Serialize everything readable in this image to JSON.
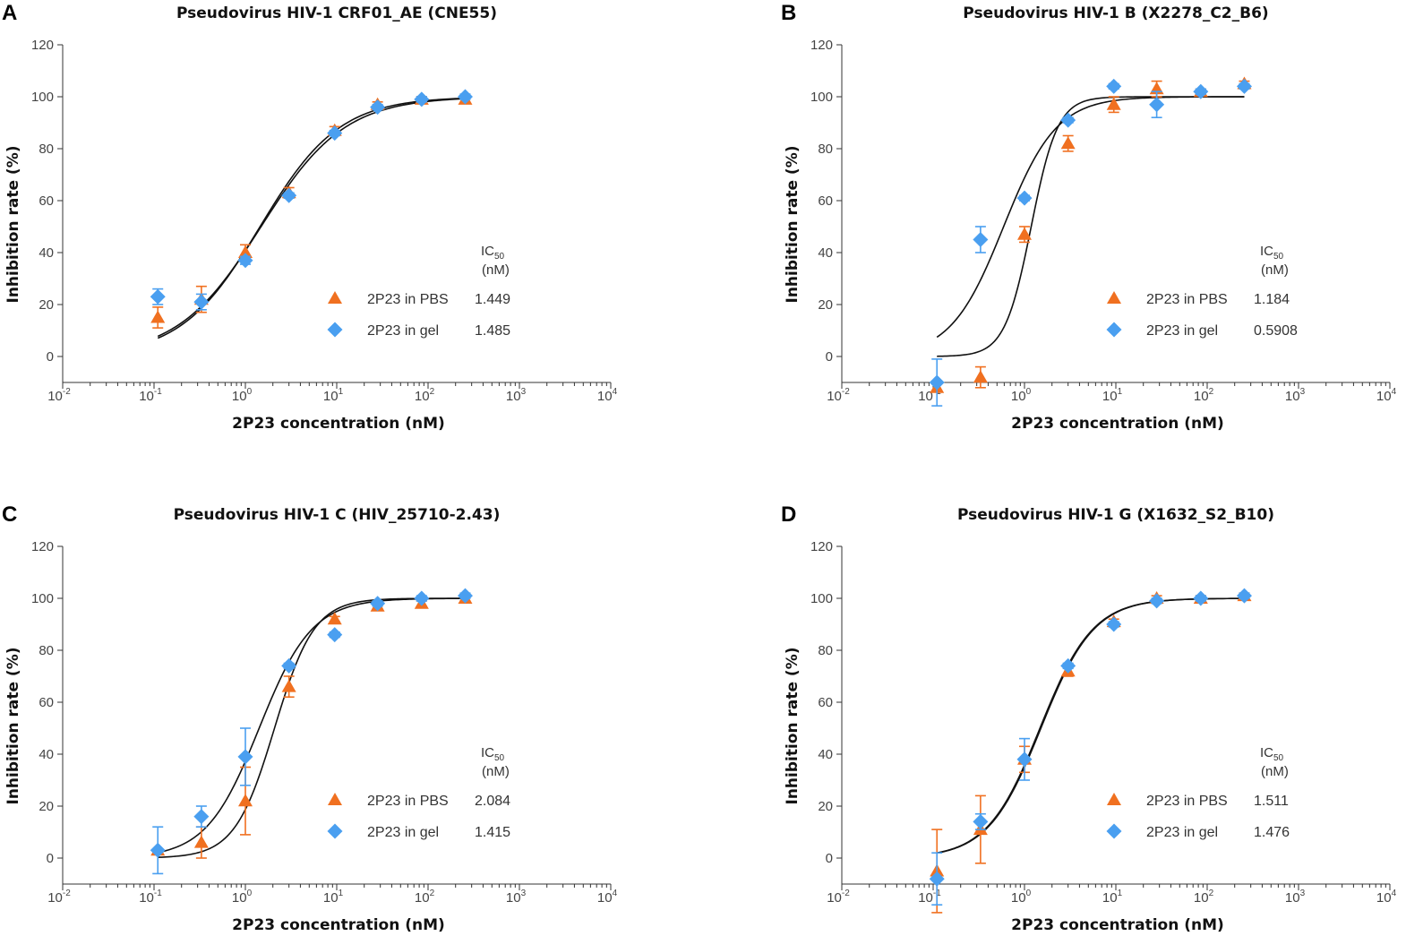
{
  "figure": {
    "xlabel": "2P23 concentration (nM)",
    "ylabel": "Inhibition rate (%)",
    "ic50_label": "IC",
    "ic50_sub": "50",
    "ic50_unit": "(nM)",
    "colors": {
      "pbs": "#f07020",
      "gel": "#4a9ff0",
      "curve": "#111111"
    }
  },
  "chart_data": [
    {
      "type": "scatter",
      "panel": "A",
      "title": "Pseudovirus HIV-1 CRF01_AE (CNE55)",
      "xlabel": "2P23 concentration (nM)",
      "ylabel": "Inhibition rate (%)",
      "xscale": "log",
      "xlim": [
        0.01,
        10000
      ],
      "ylim": [
        -10,
        120
      ],
      "yticks": [
        0,
        20,
        40,
        60,
        80,
        100,
        120
      ],
      "xtick_exponents": [
        "-2",
        "-1",
        "0",
        "1",
        "2",
        "3",
        "4"
      ],
      "x": [
        0.11,
        0.33,
        1.0,
        3.0,
        9.5,
        28,
        85,
        255
      ],
      "series": [
        {
          "name": "2P23 in PBS",
          "marker": "triangle",
          "ic50": "1.449",
          "values": [
            15,
            22,
            40,
            63,
            87,
            97,
            99,
            99
          ],
          "errors": [
            4,
            5,
            3,
            2,
            1.5,
            1,
            1,
            1
          ],
          "fit": {
            "ic50": 1.449,
            "hill": 1.0,
            "top": 100,
            "bottom": 0
          }
        },
        {
          "name": "2P23 in gel",
          "marker": "diamond",
          "ic50": "1.485",
          "values": [
            23,
            21,
            37,
            62,
            86,
            96,
            99,
            100
          ],
          "errors": [
            3,
            3,
            1.5,
            1,
            1,
            1,
            1,
            1
          ],
          "fit": {
            "ic50": 1.485,
            "hill": 0.95,
            "top": 100,
            "bottom": 0
          }
        }
      ]
    },
    {
      "type": "scatter",
      "panel": "B",
      "title": "Pseudovirus HIV-1 B (X2278_C2_B6)",
      "xlabel": "2P23 concentration (nM)",
      "ylabel": "Inhibition rate (%)",
      "xscale": "log",
      "xlim": [
        0.01,
        10000
      ],
      "ylim": [
        -10,
        120
      ],
      "yticks": [
        0,
        20,
        40,
        60,
        80,
        100,
        120
      ],
      "xtick_exponents": [
        "-2",
        "-1",
        "0",
        "1",
        "2",
        "3",
        "4"
      ],
      "x": [
        0.11,
        0.33,
        1.0,
        3.0,
        9.5,
        28,
        85,
        255
      ],
      "series": [
        {
          "name": "2P23 in PBS",
          "marker": "triangle",
          "ic50": "1.184",
          "values": [
            -12,
            -8,
            47,
            82,
            97,
            103,
            102,
            105
          ],
          "errors": [
            0,
            4,
            3,
            3,
            3,
            3,
            1,
            1
          ],
          "fit": {
            "ic50": 1.184,
            "hill": 3.0,
            "top": 100,
            "bottom": 0
          }
        },
        {
          "name": "2P23 in gel",
          "marker": "diamond",
          "ic50": "0.5908",
          "values": [
            -10,
            45,
            61,
            91,
            104,
            97,
            102,
            104
          ],
          "errors": [
            9,
            5,
            1,
            1,
            1,
            5,
            1,
            1
          ],
          "fit": {
            "ic50": 0.5908,
            "hill": 1.5,
            "top": 100,
            "bottom": 0
          }
        }
      ]
    },
    {
      "type": "scatter",
      "panel": "C",
      "title": "Pseudovirus HIV-1 C (HIV_25710-2.43)",
      "xlabel": "2P23 concentration (nM)",
      "ylabel": "Inhibition rate (%)",
      "xscale": "log",
      "xlim": [
        0.01,
        10000
      ],
      "ylim": [
        -10,
        120
      ],
      "yticks": [
        0,
        20,
        40,
        60,
        80,
        100,
        120
      ],
      "xtick_exponents": [
        "-2",
        "-1",
        "0",
        "1",
        "2",
        "3",
        "4"
      ],
      "x": [
        0.11,
        0.33,
        1.0,
        3.0,
        9.5,
        28,
        85,
        255
      ],
      "series": [
        {
          "name": "2P23 in PBS",
          "marker": "triangle",
          "ic50": "2.084",
          "values": [
            3,
            6,
            22,
            66,
            92,
            97,
            98,
            100
          ],
          "errors": [
            0,
            6,
            13,
            4,
            1,
            1,
            1,
            1
          ],
          "fit": {
            "ic50": 2.084,
            "hill": 2.0,
            "top": 100,
            "bottom": 0
          }
        },
        {
          "name": "2P23 in gel",
          "marker": "diamond",
          "ic50": "1.415",
          "values": [
            3,
            16,
            39,
            74,
            86,
            98,
            100,
            101
          ],
          "errors": [
            9,
            4,
            11,
            1,
            1,
            1,
            1,
            1
          ],
          "fit": {
            "ic50": 1.415,
            "hill": 1.5,
            "top": 100,
            "bottom": 0
          }
        }
      ]
    },
    {
      "type": "scatter",
      "panel": "D",
      "title": "Pseudovirus HIV-1 G (X1632_S2_B10)",
      "xlabel": "2P23 concentration (nM)",
      "ylabel": "Inhibition rate (%)",
      "xscale": "log",
      "xlim": [
        0.01,
        10000
      ],
      "ylim": [
        -10,
        120
      ],
      "yticks": [
        0,
        20,
        40,
        60,
        80,
        100,
        120
      ],
      "xtick_exponents": [
        "-2",
        "-1",
        "0",
        "1",
        "2",
        "3",
        "4"
      ],
      "x": [
        0.11,
        0.33,
        1.0,
        3.0,
        9.5,
        28,
        85,
        255
      ],
      "series": [
        {
          "name": "2P23 in PBS",
          "marker": "triangle",
          "ic50": "1.511",
          "values": [
            -5,
            11,
            38,
            72,
            91,
            100,
            100,
            101
          ],
          "errors": [
            16,
            13,
            5,
            2,
            1,
            1,
            1,
            1
          ],
          "fit": {
            "ic50": 1.511,
            "hill": 1.5,
            "top": 100,
            "bottom": 0
          }
        },
        {
          "name": "2P23 in gel",
          "marker": "diamond",
          "ic50": "1.476",
          "values": [
            -8,
            14,
            38,
            74,
            90,
            99,
            100,
            101
          ],
          "errors": [
            10,
            3,
            8,
            1,
            1,
            1,
            1,
            1
          ],
          "fit": {
            "ic50": 1.476,
            "hill": 1.5,
            "top": 100,
            "bottom": 0
          }
        }
      ]
    }
  ]
}
